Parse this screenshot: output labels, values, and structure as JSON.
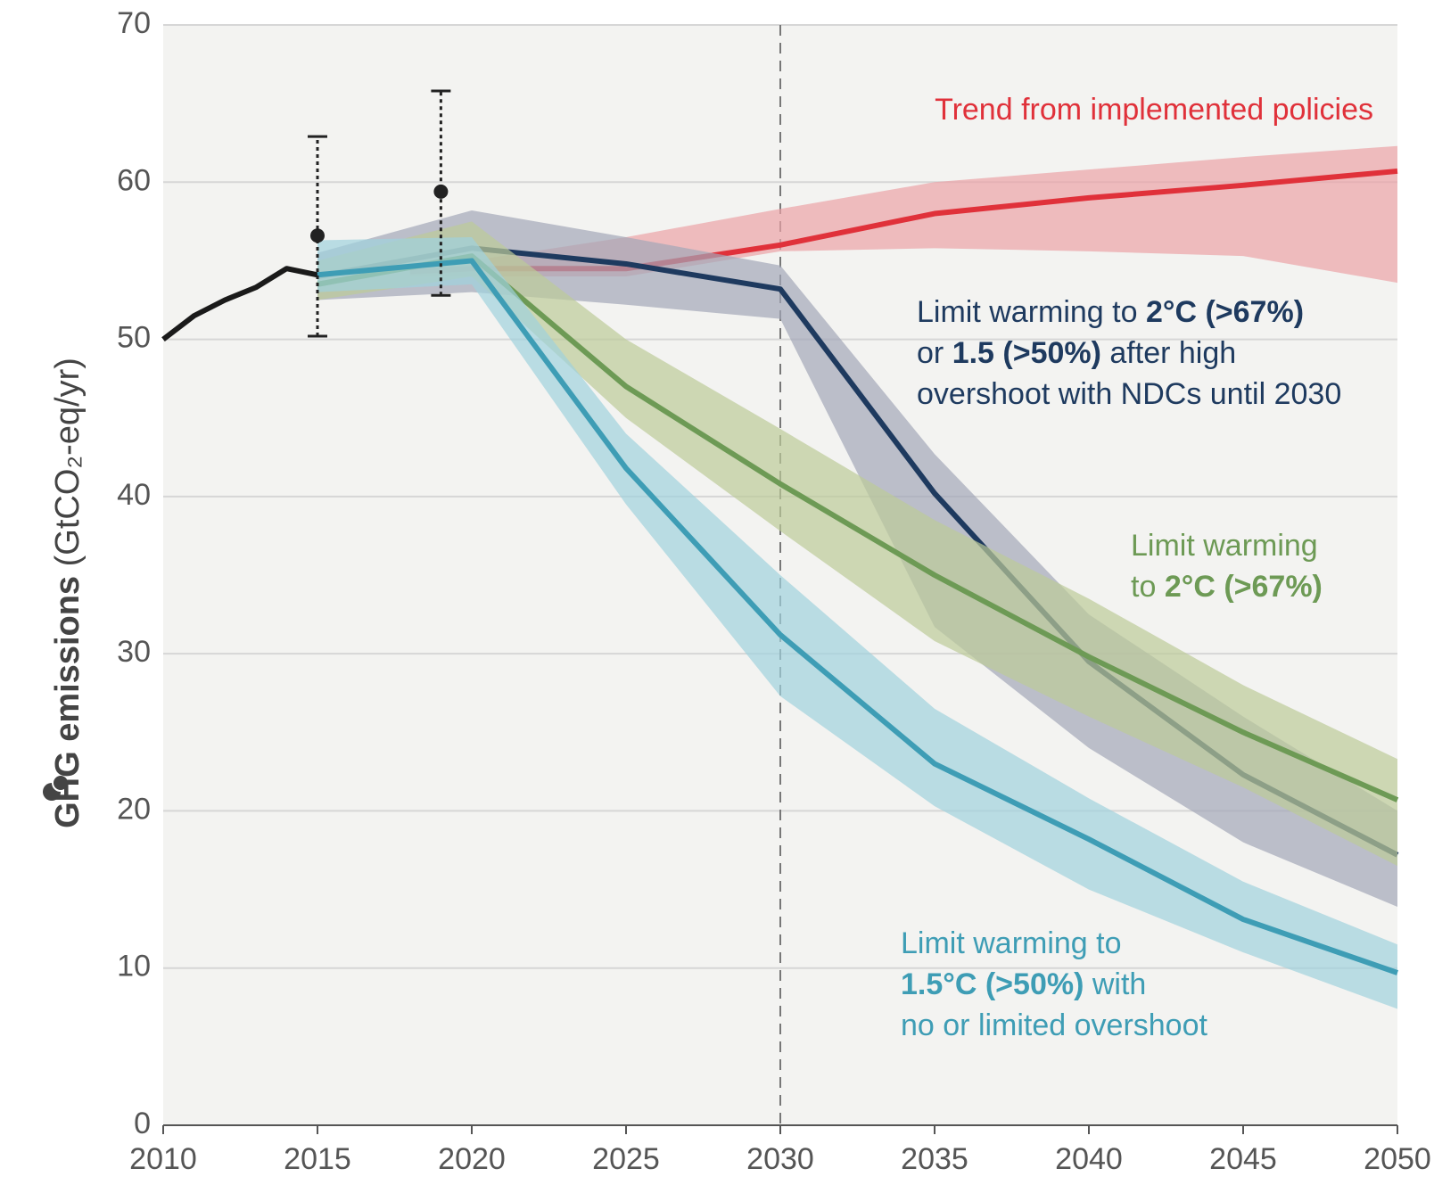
{
  "chart_data": {
    "type": "line",
    "y_label": [
      {
        "text": "GHG emissions",
        "bold": true
      },
      {
        "text": " (GtCO₂-eq/yr)"
      }
    ],
    "xlim": [
      2010,
      2050
    ],
    "ylim": [
      0,
      70
    ],
    "xticks": [
      2010,
      2015,
      2020,
      2025,
      2030,
      2035,
      2040,
      2045,
      2050
    ],
    "yticks": [
      0,
      10,
      20,
      30,
      40,
      50,
      60,
      70
    ],
    "grid": true,
    "reference_line": {
      "x": 2030,
      "style": "dashed"
    },
    "observations": {
      "x": [
        2015,
        2019
      ],
      "values": [
        56.6,
        59.4
      ],
      "low": [
        50.2,
        52.8
      ],
      "high": [
        62.9,
        65.8
      ],
      "color": "#222222"
    },
    "series": [
      {
        "name": "historical",
        "color": "#1a1a1a",
        "x": [
          2010,
          2011,
          2012,
          2013,
          2014,
          2015
        ],
        "values": [
          50,
          51.5,
          52.5,
          53.3,
          54.5,
          54.1
        ]
      },
      {
        "color": "#e0313a",
        "band_color": "#eba3a6",
        "label": [
          [
            {
              "text": "Trend from implemented policies"
            }
          ]
        ],
        "x": [
          2018,
          2020,
          2025,
          2030,
          2035,
          2040,
          2045,
          2050
        ],
        "values": [
          54.3,
          54.5,
          54.5,
          56,
          58,
          59,
          59.8,
          60.7
        ],
        "low": [
          54,
          54,
          54,
          55.6,
          55.8,
          55.6,
          55.3,
          53.6
        ],
        "high": [
          54.6,
          55,
          56.5,
          58.3,
          60,
          60.8,
          61.6,
          62.3
        ]
      },
      {
        "color": "#1e3a5f",
        "band_color": "#a3a6b8",
        "label": [
          [
            {
              "text": "Limit warming to "
            },
            {
              "text": "2°C (>67%)",
              "bold": true
            }
          ],
          [
            {
              "text": "or "
            },
            {
              "text": "1.5 (>50%)",
              "bold": true
            },
            {
              "text": " after high"
            }
          ],
          [
            {
              "text": "overshoot with NDCs until 2030"
            }
          ]
        ],
        "x": [
          2015,
          2020,
          2025,
          2030,
          2035,
          2040,
          2045,
          2050
        ],
        "values": [
          54,
          55.8,
          54.8,
          53.2,
          40.2,
          29.5,
          22.3,
          17.2
        ],
        "low": [
          52.5,
          53,
          52.2,
          51.3,
          31.7,
          24,
          18,
          13.9
        ],
        "high": [
          55.5,
          58.2,
          56.5,
          54.7,
          42.7,
          32.5,
          26,
          20
        ]
      },
      {
        "color": "#6d9a55",
        "band_color": "#bccb98",
        "label": [
          [
            {
              "text": "Limit warming"
            }
          ],
          [
            {
              "text": "to "
            },
            {
              "text": "2°C (>67%)",
              "bold": true
            }
          ]
        ],
        "x": [
          2015,
          2020,
          2025,
          2030,
          2035,
          2040,
          2045,
          2050
        ],
        "values": [
          53.5,
          55.3,
          47,
          40.8,
          35,
          29.8,
          25,
          20.7
        ],
        "low": [
          52.5,
          54,
          45,
          37.8,
          30.8,
          26,
          21.5,
          16.5
        ],
        "high": [
          55,
          57.5,
          50,
          44.3,
          38.5,
          33.5,
          28,
          23.3
        ]
      },
      {
        "color": "#3e9db5",
        "band_color": "#9fd1dd",
        "label": [
          [
            {
              "text": "Limit warming to"
            }
          ],
          [
            {
              "text": "1.5°C (>50%)",
              "bold": true
            },
            {
              "text": " with"
            }
          ],
          [
            {
              "text": "no or limited overshoot"
            }
          ]
        ],
        "x": [
          2015,
          2020,
          2025,
          2030,
          2035,
          2040,
          2045,
          2050
        ],
        "values": [
          54.1,
          55,
          41.8,
          31.2,
          23,
          18.2,
          13.1,
          9.7
        ],
        "low": [
          53,
          53.5,
          39.5,
          27.3,
          20.3,
          15,
          11,
          7.4
        ],
        "high": [
          56.3,
          56.5,
          44,
          35,
          26.5,
          20.8,
          15.5,
          11.5
        ]
      }
    ]
  }
}
